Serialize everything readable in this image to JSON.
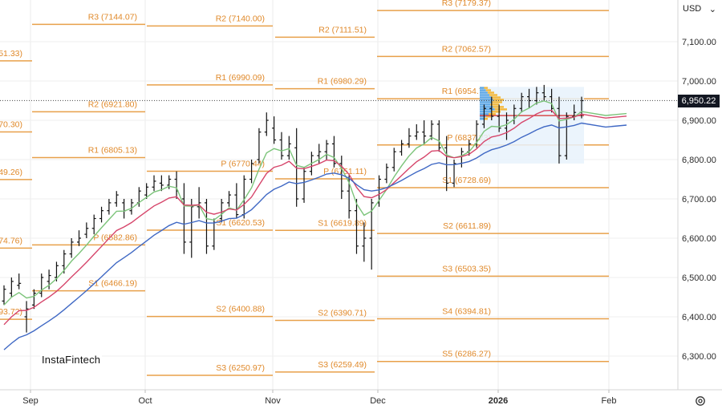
{
  "header": {
    "currency": "USD"
  },
  "last_price_label": "6,950.22",
  "watermark": "InstaFintech",
  "colors": {
    "pivot": "#e8a04a",
    "pivot_text": "#e0892a",
    "ma_fast": "#7cc47a",
    "ma_mid": "#d6466b",
    "ma_slow": "#3f68c4",
    "bars": "#111111",
    "profile_sell": "#5fa8e6",
    "profile_buy": "#f3b93f"
  },
  "chart_data": {
    "type": "line",
    "title": "",
    "xlabel": "",
    "ylabel": "",
    "ylim": [
      6230,
      7210
    ],
    "y_ticks": [
      "7,100.00",
      "7,000.00",
      "6,900.00",
      "6,800.00",
      "6,700.00",
      "6,600.00",
      "6,500.00",
      "6,400.00",
      "6,300.00"
    ],
    "y_tick_values": [
      7100,
      7000,
      6900,
      6800,
      6700,
      6600,
      6500,
      6400,
      6300
    ],
    "x_ticks": [
      "Sep",
      "Oct",
      "Nov",
      "Dec",
      "2026",
      "Feb"
    ],
    "grid": true,
    "last_price": 6950.22,
    "pivot_levels": [
      {
        "period": "Aug",
        "level": "R1",
        "value": 7051.33,
        "label": "51.33)"
      },
      {
        "period": "Aug",
        "level": "P",
        "value": 6870.3,
        "label": "70.30)"
      },
      {
        "period": "Aug",
        "level": "S1",
        "value": 6749.26,
        "label": "49.26)"
      },
      {
        "period": "Aug",
        "level": "S2",
        "value": 6574.76,
        "label": "74.76)"
      },
      {
        "period": "Aug",
        "level": "S3",
        "value": 6393.72,
        "label": "93.72)"
      },
      {
        "period": "Sep",
        "level": "R3",
        "value": 7144.07,
        "label": "R3 (7144.07)"
      },
      {
        "period": "Sep",
        "level": "R2",
        "value": 6921.8,
        "label": "R2 (6921.80)"
      },
      {
        "period": "Sep",
        "level": "R1",
        "value": 6805.13,
        "label": "R1 (6805.13)"
      },
      {
        "period": "Sep",
        "level": "P",
        "value": 6582.86,
        "label": "P (6582.86)"
      },
      {
        "period": "Sep",
        "level": "S1",
        "value": 6466.19,
        "label": "S1 (6466.19)"
      },
      {
        "period": "Oct",
        "level": "R2",
        "value": 7140.0,
        "label": "R2 (7140.00)"
      },
      {
        "period": "Oct",
        "level": "R1",
        "value": 6990.09,
        "label": "R1 (6990.09)"
      },
      {
        "period": "Oct",
        "level": "P",
        "value": 6770.44,
        "label": "P (6770.44)"
      },
      {
        "period": "Oct",
        "level": "S1",
        "value": 6620.53,
        "label": "S1 (6620.53)"
      },
      {
        "period": "Oct",
        "level": "S2",
        "value": 6400.88,
        "label": "S2 (6400.88)"
      },
      {
        "period": "Oct",
        "level": "S3",
        "value": 6250.97,
        "label": "S3 (6250.97)"
      },
      {
        "period": "Nov",
        "level": "R2",
        "value": 7111.51,
        "label": "R2 (7111.51)"
      },
      {
        "period": "Nov",
        "level": "R1",
        "value": 6980.29,
        "label": "R1 (6980.29)"
      },
      {
        "period": "Nov",
        "level": "P",
        "value": 6751.11,
        "label": "P (6751.11)"
      },
      {
        "period": "Nov",
        "level": "S1",
        "value": 6619.89,
        "label": "S1 (6619.89)"
      },
      {
        "period": "Nov",
        "level": "S2",
        "value": 6390.71,
        "label": "S2 (6390.71)"
      },
      {
        "period": "Nov",
        "level": "S3",
        "value": 6259.49,
        "label": "S3 (6259.49)"
      },
      {
        "period": "Dec",
        "level": "R3",
        "value": 7179.37,
        "label": "R3 (7179.37)"
      },
      {
        "period": "Dec",
        "level": "R2",
        "value": 7062.57,
        "label": "R2 (7062.57)"
      },
      {
        "period": "Dec",
        "level": "R1",
        "value": 6954.77,
        "label": "R1 (6954.77)"
      },
      {
        "period": "Dec",
        "level": "P",
        "value": 6837.23,
        "label": "P (6837.23)"
      },
      {
        "period": "Dec",
        "level": "S1",
        "value": 6728.69,
        "label": "S1 (6728.69)"
      },
      {
        "period": "Dec",
        "level": "S2",
        "value": 6611.89,
        "label": "S2 (6611.89)"
      },
      {
        "period": "Dec",
        "level": "S3",
        "value": 6503.35,
        "label": "S3 (6503.35)"
      },
      {
        "period": "Dec",
        "level": "S4",
        "value": 6394.81,
        "label": "S4 (6394.81)"
      },
      {
        "period": "Dec",
        "level": "S5",
        "value": 6286.27,
        "label": "S5 (6286.27)"
      }
    ],
    "ohlc": [
      [
        6440,
        6480,
        6430,
        6470
      ],
      [
        6460,
        6500,
        6450,
        6490
      ],
      [
        6480,
        6510,
        6470,
        6485
      ],
      [
        6400,
        6440,
        6360,
        6420
      ],
      [
        6430,
        6470,
        6420,
        6460
      ],
      [
        6460,
        6510,
        6450,
        6500
      ],
      [
        6490,
        6520,
        6470,
        6505
      ],
      [
        6500,
        6540,
        6490,
        6530
      ],
      [
        6530,
        6570,
        6510,
        6560
      ],
      [
        6560,
        6600,
        6550,
        6590
      ],
      [
        6590,
        6620,
        6580,
        6600
      ],
      [
        6610,
        6640,
        6600,
        6625
      ],
      [
        6625,
        6660,
        6610,
        6650
      ],
      [
        6650,
        6680,
        6640,
        6670
      ],
      [
        6670,
        6700,
        6660,
        6690
      ],
      [
        6690,
        6720,
        6680,
        6710
      ],
      [
        6690,
        6700,
        6650,
        6670
      ],
      [
        6670,
        6700,
        6660,
        6690
      ],
      [
        6690,
        6730,
        6680,
        6720
      ],
      [
        6710,
        6740,
        6700,
        6730
      ],
      [
        6730,
        6760,
        6720,
        6745
      ],
      [
        6740,
        6760,
        6720,
        6735
      ],
      [
        6735,
        6760,
        6725,
        6750
      ],
      [
        6750,
        6770,
        6700,
        6720
      ],
      [
        6700,
        6740,
        6560,
        6590
      ],
      [
        6590,
        6700,
        6550,
        6680
      ],
      [
        6680,
        6730,
        6650,
        6690
      ],
      [
        6690,
        6700,
        6560,
        6580
      ],
      [
        6580,
        6650,
        6570,
        6640
      ],
      [
        6650,
        6700,
        6640,
        6690
      ],
      [
        6690,
        6720,
        6680,
        6710
      ],
      [
        6710,
        6740,
        6650,
        6660
      ],
      [
        6660,
        6760,
        6650,
        6750
      ],
      [
        6750,
        6800,
        6740,
        6790
      ],
      [
        6800,
        6880,
        6790,
        6870
      ],
      [
        6870,
        6920,
        6860,
        6900
      ],
      [
        6880,
        6910,
        6840,
        6850
      ],
      [
        6850,
        6870,
        6800,
        6810
      ],
      [
        6810,
        6860,
        6800,
        6840
      ],
      [
        6830,
        6880,
        6680,
        6700
      ],
      [
        6700,
        6780,
        6690,
        6770
      ],
      [
        6770,
        6820,
        6760,
        6810
      ],
      [
        6810,
        6840,
        6790,
        6820
      ],
      [
        6820,
        6850,
        6800,
        6840
      ],
      [
        6840,
        6860,
        6780,
        6790
      ],
      [
        6790,
        6810,
        6700,
        6720
      ],
      [
        6720,
        6760,
        6650,
        6670
      ],
      [
        6670,
        6700,
        6560,
        6580
      ],
      [
        6580,
        6640,
        6540,
        6600
      ],
      [
        6600,
        6700,
        6520,
        6690
      ],
      [
        6690,
        6760,
        6680,
        6750
      ],
      [
        6750,
        6790,
        6740,
        6780
      ],
      [
        6780,
        6830,
        6770,
        6820
      ],
      [
        6820,
        6850,
        6810,
        6840
      ],
      [
        6840,
        6880,
        6830,
        6860
      ],
      [
        6860,
        6890,
        6850,
        6870
      ],
      [
        6870,
        6900,
        6840,
        6860
      ],
      [
        6860,
        6900,
        6850,
        6890
      ],
      [
        6890,
        6900,
        6820,
        6830
      ],
      [
        6830,
        6860,
        6720,
        6740
      ],
      [
        6740,
        6800,
        6730,
        6790
      ],
      [
        6790,
        6830,
        6780,
        6820
      ],
      [
        6820,
        6850,
        6810,
        6840
      ],
      [
        6840,
        6900,
        6830,
        6890
      ],
      [
        6890,
        6940,
        6880,
        6930
      ],
      [
        6930,
        6960,
        6900,
        6910
      ],
      [
        6910,
        6940,
        6870,
        6880
      ],
      [
        6880,
        6920,
        6850,
        6900
      ],
      [
        6900,
        6940,
        6890,
        6930
      ],
      [
        6930,
        6970,
        6920,
        6960
      ],
      [
        6960,
        6980,
        6930,
        6950
      ],
      [
        6950,
        6985,
        6940,
        6970
      ],
      [
        6970,
        6990,
        6950,
        6960
      ],
      [
        6960,
        6980,
        6920,
        6930
      ],
      [
        6930,
        6960,
        6790,
        6810
      ],
      [
        6810,
        6920,
        6800,
        6910
      ],
      [
        6910,
        6940,
        6900,
        6920
      ],
      [
        6920,
        6960,
        6905,
        6950
      ]
    ],
    "series": [
      {
        "name": "",
        "key": "ma_fast"
      },
      {
        "name": "",
        "key": "ma_mid"
      },
      {
        "name": "",
        "key": "ma_slow"
      }
    ]
  }
}
